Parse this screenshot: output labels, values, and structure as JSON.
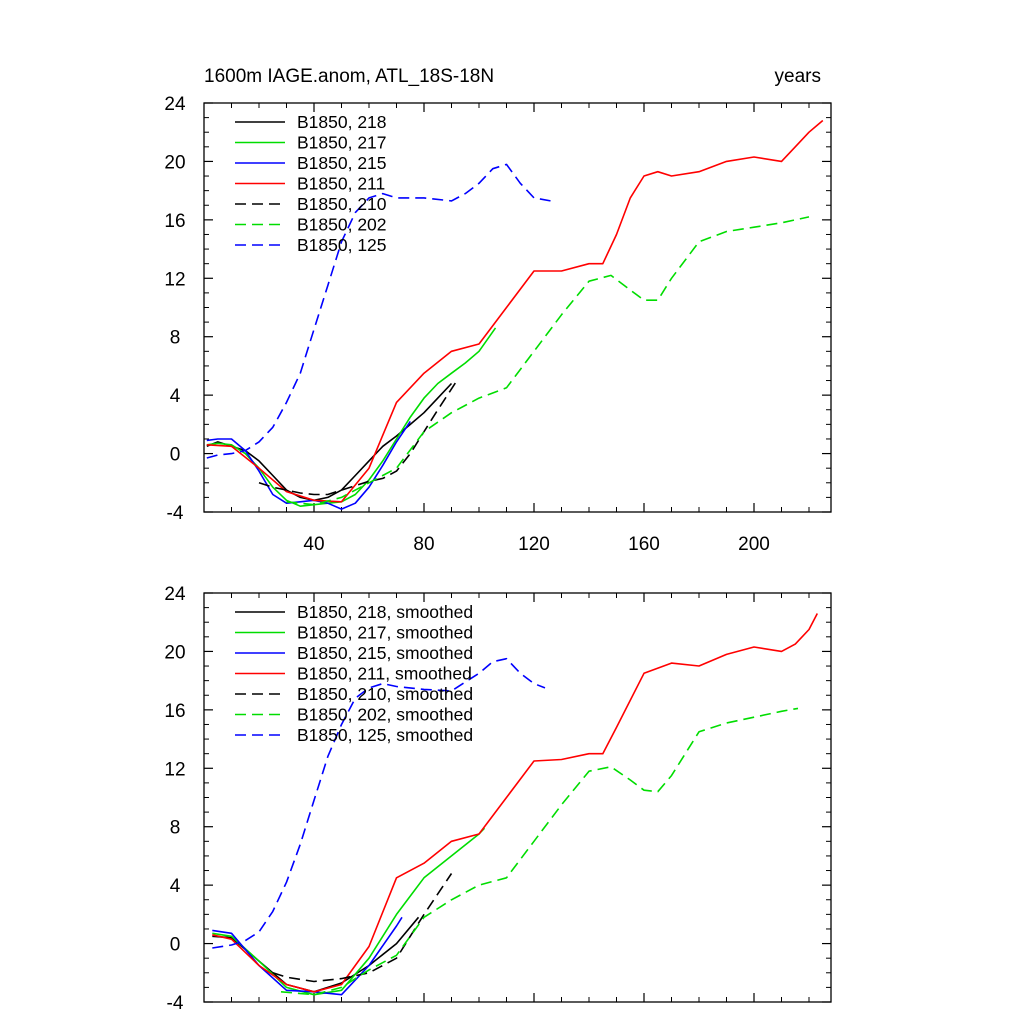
{
  "chart_data": [
    {
      "type": "line",
      "title": "1600m IAGE.anom, ATL_18S-18N",
      "right_title": "years",
      "xlim": [
        0,
        228
      ],
      "ylim": [
        -4,
        24
      ],
      "x_ticks": [
        40,
        80,
        120,
        160,
        200
      ],
      "x_tick_labels": [
        "40",
        "80",
        "120",
        "160",
        "200"
      ],
      "y_ticks": [
        -4,
        0,
        4,
        8,
        12,
        16,
        20,
        24
      ],
      "y_tick_labels": [
        "-4",
        "0",
        "4",
        "8",
        "12",
        "16",
        "20",
        "24"
      ],
      "legend_position": "top-left",
      "series": [
        {
          "name": "B1850, 218",
          "color": "#000000",
          "dash": "solid",
          "x": [
            1,
            5,
            10,
            15,
            20,
            25,
            30,
            35,
            40,
            45,
            50,
            55,
            60,
            65,
            70,
            75,
            80,
            85,
            90
          ],
          "y": [
            0.5,
            0.8,
            0.5,
            0.2,
            -0.5,
            -1.5,
            -2.5,
            -3.0,
            -3.2,
            -3.0,
            -2.5,
            -1.5,
            -0.5,
            0.5,
            1.2,
            2.0,
            2.8,
            3.8,
            4.8
          ]
        },
        {
          "name": "B1850, 217",
          "color": "#00dd00",
          "dash": "solid",
          "x": [
            1,
            5,
            10,
            15,
            20,
            25,
            30,
            35,
            40,
            45,
            50,
            55,
            60,
            65,
            70,
            75,
            80,
            85,
            90,
            95,
            100,
            106
          ],
          "y": [
            0.6,
            0.7,
            0.6,
            0.0,
            -1.0,
            -2.3,
            -3.2,
            -3.6,
            -3.5,
            -3.4,
            -3.3,
            -2.8,
            -1.8,
            -0.5,
            1.0,
            2.5,
            3.8,
            4.8,
            5.5,
            6.2,
            7.0,
            8.6
          ]
        },
        {
          "name": "B1850, 215",
          "color": "#0000ff",
          "dash": "solid",
          "x": [
            1,
            5,
            10,
            15,
            20,
            25,
            30,
            35,
            40,
            45,
            50,
            55,
            60,
            65,
            70,
            75
          ],
          "y": [
            0.9,
            1.0,
            1.0,
            0.2,
            -1.2,
            -2.8,
            -3.4,
            -3.3,
            -3.2,
            -3.4,
            -3.8,
            -3.4,
            -2.3,
            -0.8,
            0.8,
            2.2
          ]
        },
        {
          "name": "B1850, 211",
          "color": "#ff0000",
          "dash": "solid",
          "x": [
            1,
            10,
            20,
            30,
            40,
            50,
            60,
            70,
            80,
            90,
            100,
            110,
            120,
            130,
            140,
            145,
            150,
            155,
            160,
            165,
            170,
            180,
            190,
            200,
            210,
            215,
            220,
            225
          ],
          "y": [
            0.6,
            0.5,
            -1.0,
            -2.6,
            -3.2,
            -3.3,
            -1.0,
            3.5,
            5.5,
            7.0,
            7.5,
            10.0,
            12.5,
            12.5,
            13.0,
            13.0,
            15.0,
            17.5,
            19.0,
            19.3,
            19.0,
            19.3,
            20.0,
            20.3,
            20.0,
            21.0,
            22.0,
            22.8
          ]
        },
        {
          "name": "B1850, 210",
          "color": "#000000",
          "dash": "dashed",
          "x": [
            20,
            25,
            30,
            35,
            40,
            45,
            50,
            55,
            60,
            65,
            70,
            75,
            80,
            85,
            92
          ],
          "y": [
            -2.0,
            -2.3,
            -2.5,
            -2.7,
            -2.8,
            -2.8,
            -2.5,
            -2.2,
            -1.9,
            -1.7,
            -1.2,
            0.0,
            1.5,
            3.0,
            5.0
          ]
        },
        {
          "name": "B1850, 202",
          "color": "#00dd00",
          "dash": "dashed",
          "x": [
            30,
            40,
            50,
            60,
            70,
            80,
            90,
            100,
            110,
            120,
            130,
            140,
            148,
            155,
            160,
            165,
            170,
            180,
            190,
            200,
            210,
            220
          ],
          "y": [
            -3.3,
            -3.5,
            -3.0,
            -2.0,
            -1.0,
            1.5,
            2.8,
            3.8,
            4.5,
            7.0,
            9.5,
            11.8,
            12.2,
            11.2,
            10.5,
            10.5,
            12.0,
            14.5,
            15.2,
            15.5,
            15.8,
            16.2
          ]
        },
        {
          "name": "B1850, 125",
          "color": "#0000ff",
          "dash": "dashed",
          "x": [
            1,
            5,
            10,
            15,
            20,
            25,
            30,
            35,
            40,
            45,
            50,
            55,
            60,
            65,
            70,
            80,
            90,
            95,
            100,
            105,
            110,
            115,
            120,
            126
          ],
          "y": [
            -0.3,
            -0.1,
            0.0,
            0.2,
            0.8,
            1.8,
            3.5,
            5.5,
            8.5,
            11.5,
            14.5,
            16.5,
            17.5,
            17.8,
            17.5,
            17.5,
            17.3,
            17.8,
            18.5,
            19.5,
            19.8,
            18.5,
            17.5,
            17.3
          ]
        }
      ]
    },
    {
      "type": "line",
      "title": "",
      "xlim": [
        0,
        228
      ],
      "ylim": [
        -4,
        24
      ],
      "x_ticks": [
        40,
        80,
        120,
        160,
        200
      ],
      "x_tick_labels": [],
      "y_ticks": [
        -4,
        0,
        4,
        8,
        12,
        16,
        20,
        24
      ],
      "y_tick_labels": [
        "-4",
        "0",
        "4",
        "8",
        "12",
        "16",
        "20",
        "24"
      ],
      "legend_position": "top-left",
      "series": [
        {
          "name": "B1850, 218, smoothed",
          "color": "#000000",
          "dash": "solid",
          "x": [
            3,
            10,
            20,
            30,
            40,
            50,
            60,
            70,
            78
          ],
          "y": [
            0.5,
            0.4,
            -1.2,
            -2.8,
            -3.3,
            -2.7,
            -1.5,
            0.0,
            1.8
          ]
        },
        {
          "name": "B1850, 217, smoothed",
          "color": "#00dd00",
          "dash": "solid",
          "x": [
            3,
            10,
            20,
            30,
            40,
            50,
            60,
            70,
            80,
            90,
            100,
            102
          ],
          "y": [
            0.7,
            0.5,
            -1.2,
            -3.0,
            -3.5,
            -3.2,
            -1.0,
            2.0,
            4.5,
            6.0,
            7.5,
            7.9
          ]
        },
        {
          "name": "B1850, 215, smoothed",
          "color": "#0000ff",
          "dash": "solid",
          "x": [
            3,
            10,
            20,
            30,
            40,
            50,
            60,
            70,
            72
          ],
          "y": [
            0.9,
            0.7,
            -1.5,
            -3.2,
            -3.3,
            -3.5,
            -1.5,
            1.2,
            1.8
          ]
        },
        {
          "name": "B1850, 211, smoothed",
          "color": "#ff0000",
          "dash": "solid",
          "x": [
            3,
            10,
            20,
            30,
            40,
            50,
            60,
            70,
            80,
            90,
            100,
            110,
            120,
            130,
            140,
            145,
            150,
            160,
            170,
            180,
            190,
            200,
            210,
            215,
            220,
            223
          ],
          "y": [
            0.6,
            0.3,
            -1.5,
            -2.8,
            -3.3,
            -2.8,
            -0.2,
            4.5,
            5.5,
            7.0,
            7.5,
            10.0,
            12.5,
            12.6,
            13.0,
            13.0,
            14.8,
            18.5,
            19.2,
            19.0,
            19.8,
            20.3,
            20.0,
            20.5,
            21.5,
            22.6
          ]
        },
        {
          "name": "B1850, 210, smoothed",
          "color": "#000000",
          "dash": "dashed",
          "x": [
            25,
            30,
            40,
            50,
            60,
            70,
            80,
            90
          ],
          "y": [
            -2.0,
            -2.3,
            -2.6,
            -2.4,
            -2.0,
            -1.0,
            2.0,
            4.8
          ]
        },
        {
          "name": "B1850, 202, smoothed",
          "color": "#00dd00",
          "dash": "dashed",
          "x": [
            28,
            40,
            50,
            60,
            70,
            80,
            90,
            100,
            110,
            120,
            130,
            140,
            148,
            155,
            160,
            165,
            170,
            180,
            190,
            200,
            210,
            216
          ],
          "y": [
            -3.3,
            -3.5,
            -3.0,
            -1.8,
            -0.8,
            1.8,
            3.0,
            4.0,
            4.5,
            7.0,
            9.5,
            11.8,
            12.1,
            11.2,
            10.5,
            10.4,
            11.5,
            14.5,
            15.1,
            15.5,
            15.9,
            16.1
          ]
        },
        {
          "name": "B1850, 125, smoothed",
          "color": "#0000ff",
          "dash": "dashed",
          "x": [
            3,
            10,
            15,
            20,
            25,
            30,
            35,
            40,
            45,
            50,
            55,
            60,
            65,
            70,
            80,
            90,
            100,
            105,
            110,
            115,
            120,
            124
          ],
          "y": [
            -0.3,
            -0.1,
            0.2,
            0.8,
            2.2,
            4.2,
            6.8,
            9.8,
            12.8,
            15.0,
            16.8,
            17.5,
            17.8,
            17.6,
            17.4,
            17.3,
            18.5,
            19.3,
            19.5,
            18.5,
            17.8,
            17.5
          ]
        }
      ]
    }
  ]
}
